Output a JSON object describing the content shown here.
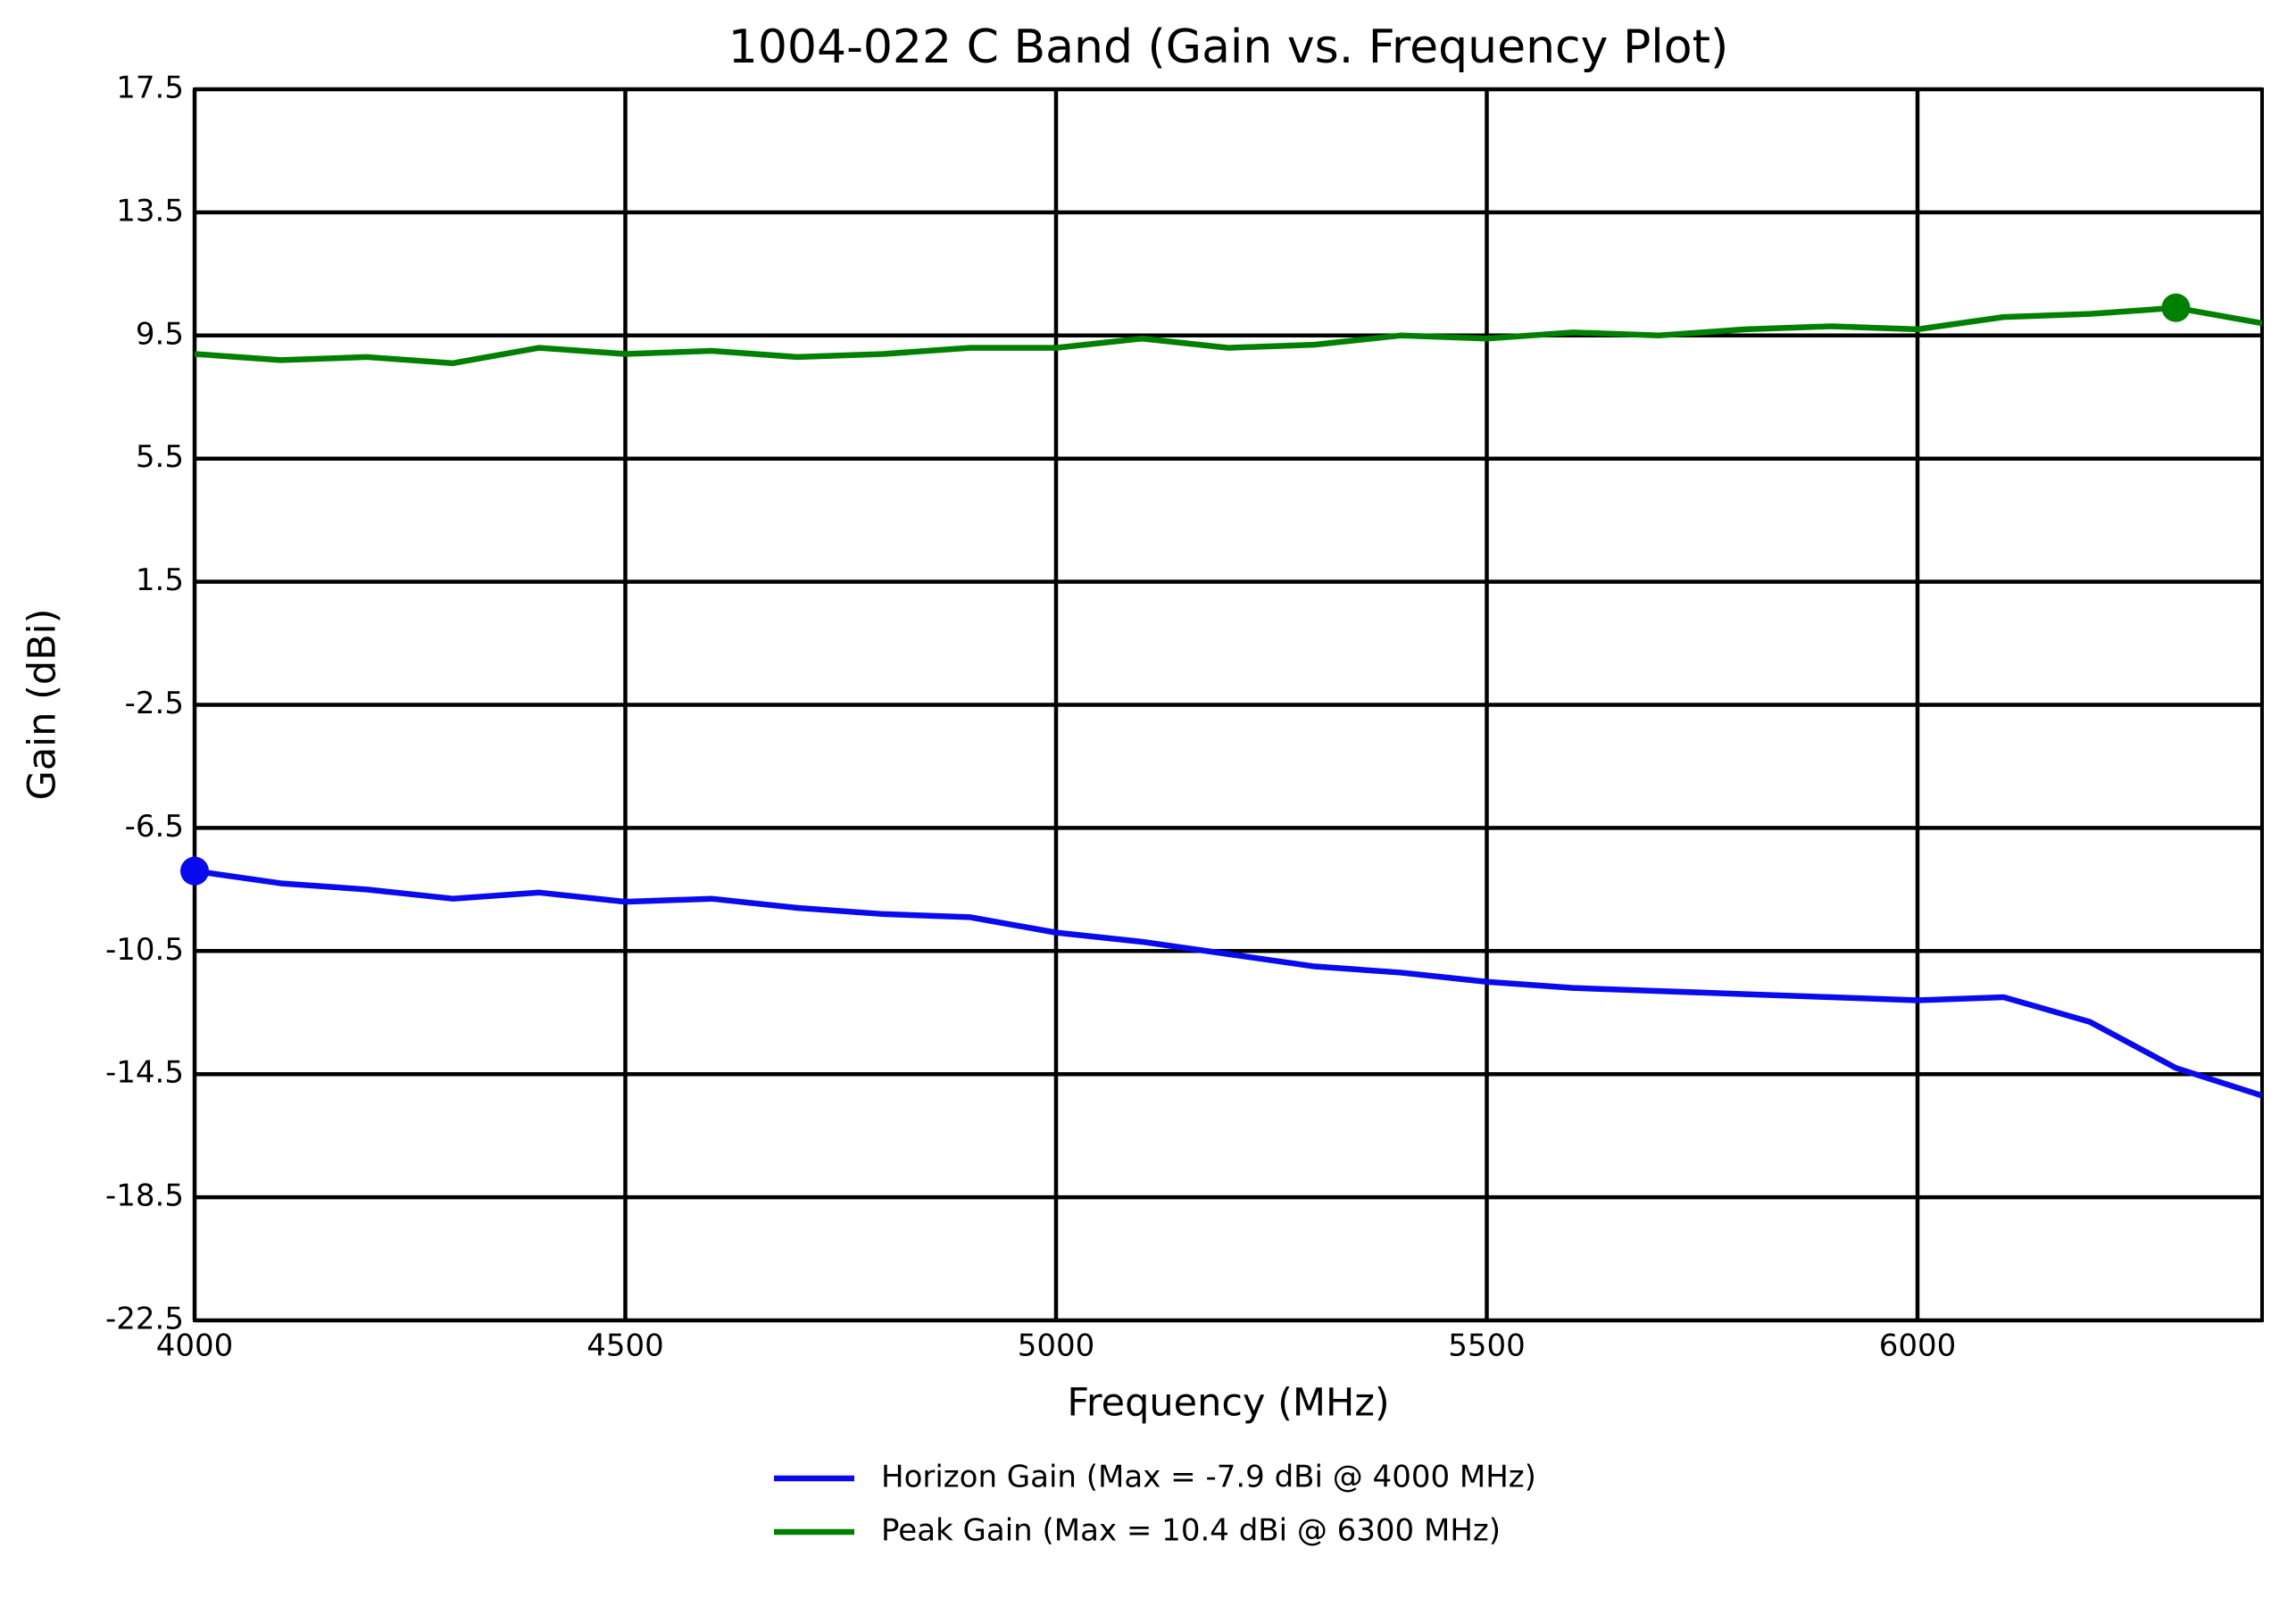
{
  "chart_data": {
    "type": "line",
    "title": "1004-022 C Band (Gain vs. Frequency Plot)",
    "x_label": "Frequency (MHz)",
    "y_label": "Gain (dBi)",
    "x": [
      4000,
      4100,
      4200,
      4300,
      4400,
      4500,
      4600,
      4700,
      4800,
      4900,
      5000,
      5100,
      5200,
      5300,
      5400,
      5500,
      5600,
      5700,
      5800,
      5900,
      6000,
      6100,
      6200,
      6300,
      6400
    ],
    "series": [
      {
        "name": "Horizon Gain (Max = -7.9 dBi @ 4000 MHz)",
        "color": "#0a0aee",
        "values": [
          -7.9,
          -8.3,
          -8.5,
          -8.8,
          -8.6,
          -8.9,
          -8.8,
          -9.1,
          -9.3,
          -9.4,
          -9.9,
          -10.2,
          -10.6,
          -11.0,
          -11.2,
          -11.5,
          -11.7,
          -11.8,
          -11.9,
          -12.0,
          -12.1,
          -12.0,
          -12.8,
          -14.3,
          -15.2
        ]
      },
      {
        "name": "Peak Gain (Max = 10.4 dBi @ 6300 MHz)",
        "color": "#008000",
        "values": [
          8.9,
          8.7,
          8.8,
          8.6,
          9.1,
          8.9,
          9.0,
          8.8,
          8.9,
          9.1,
          9.1,
          9.4,
          9.1,
          9.2,
          9.5,
          9.4,
          9.6,
          9.5,
          9.7,
          9.8,
          9.7,
          10.1,
          10.2,
          10.4,
          9.9
        ]
      }
    ],
    "xlim": [
      4000,
      6400
    ],
    "xticks": [
      4000,
      4500,
      5000,
      5500,
      6000
    ],
    "ylim": [
      -22.5,
      17.5
    ],
    "yticks": [
      -22.5,
      -18.5,
      -14.5,
      -10.5,
      -6.5,
      -2.5,
      1.5,
      5.5,
      9.5,
      13.5,
      17.5
    ],
    "grid": true,
    "legend": "bottom"
  }
}
